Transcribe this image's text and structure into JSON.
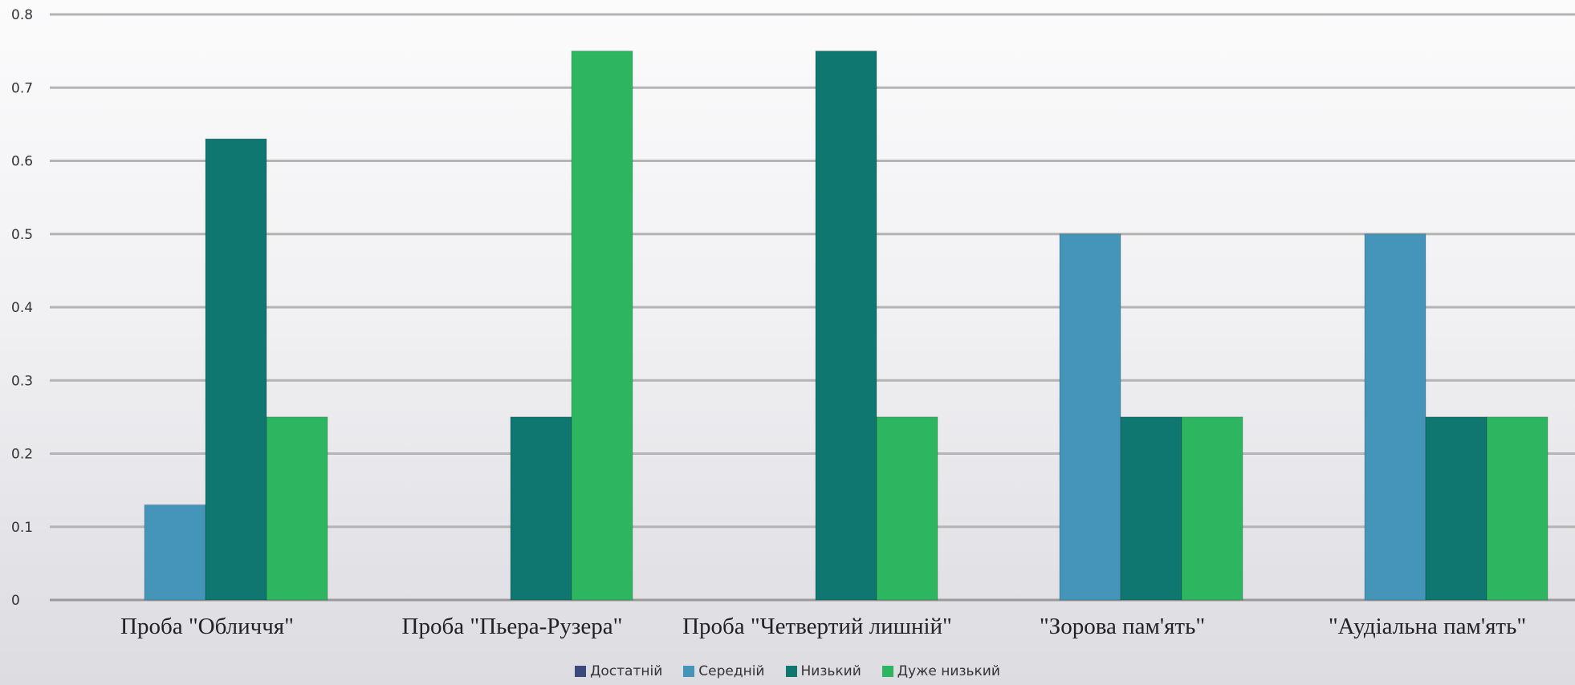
{
  "chart_data": {
    "type": "bar",
    "title": "",
    "xlabel": "",
    "ylabel": "",
    "ylim": [
      0,
      0.8
    ],
    "yticks": [
      "0",
      "0.1",
      "0.2",
      "0.3",
      "0.4",
      "0.5",
      "0.6",
      "0.7",
      "0.8"
    ],
    "grid": true,
    "legend_position": "bottom",
    "categories": [
      "Проба \"Обличчя\"",
      "Проба \"Пьера-Рузера\"",
      "Проба \"Четвертий лишній\"",
      "\"Зорова пам'ять\"",
      "\"Аудіальна пам'ять\""
    ],
    "series": [
      {
        "name": "Достатній",
        "color": "#3b4a7a",
        "values": [
          0,
          0,
          0,
          0,
          0
        ]
      },
      {
        "name": "Середній",
        "color": "#4594b9",
        "values": [
          0.13,
          0,
          0,
          0.5,
          0.5
        ]
      },
      {
        "name": "Низький",
        "color": "#0f7770",
        "values": [
          0.63,
          0.25,
          0.75,
          0.25,
          0.25
        ]
      },
      {
        "name": "Дуже низький",
        "color": "#2eb560",
        "values": [
          0.25,
          0.75,
          0.25,
          0.25,
          0.25
        ]
      }
    ],
    "colors": {
      "grid": "#b4b4b4",
      "axis": "#999999"
    }
  }
}
